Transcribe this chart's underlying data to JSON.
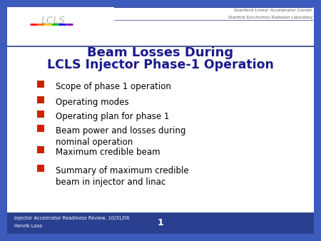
{
  "title_line1": "Beam Losses During",
  "title_line2": "LCLS Injector Phase-1 Operation",
  "title_color": "#1a1a8c",
  "bullet_items": [
    "Scope of phase 1 operation",
    "Operating modes",
    "Operating plan for phase 1",
    "Beam power and losses during\nnominal operation",
    "Maximum credible beam",
    "Summary of maximum credible\nbeam in injector and linac"
  ],
  "bullet_color": "#cc2200",
  "text_color": "#000000",
  "header_line1": "Stanford Linear Accelerator Center",
  "header_line2": "Stanford Synchrotron Radiation Laboratory",
  "footer_left1": "Injector Accelerator Readiness Review, 10/31/06",
  "footer_left2": "Henrik Loos",
  "footer_page": "1",
  "blue_dark": "#2a3f8f",
  "bg_color_body": "#ffffff",
  "slide_bg": "#3b5bbd"
}
